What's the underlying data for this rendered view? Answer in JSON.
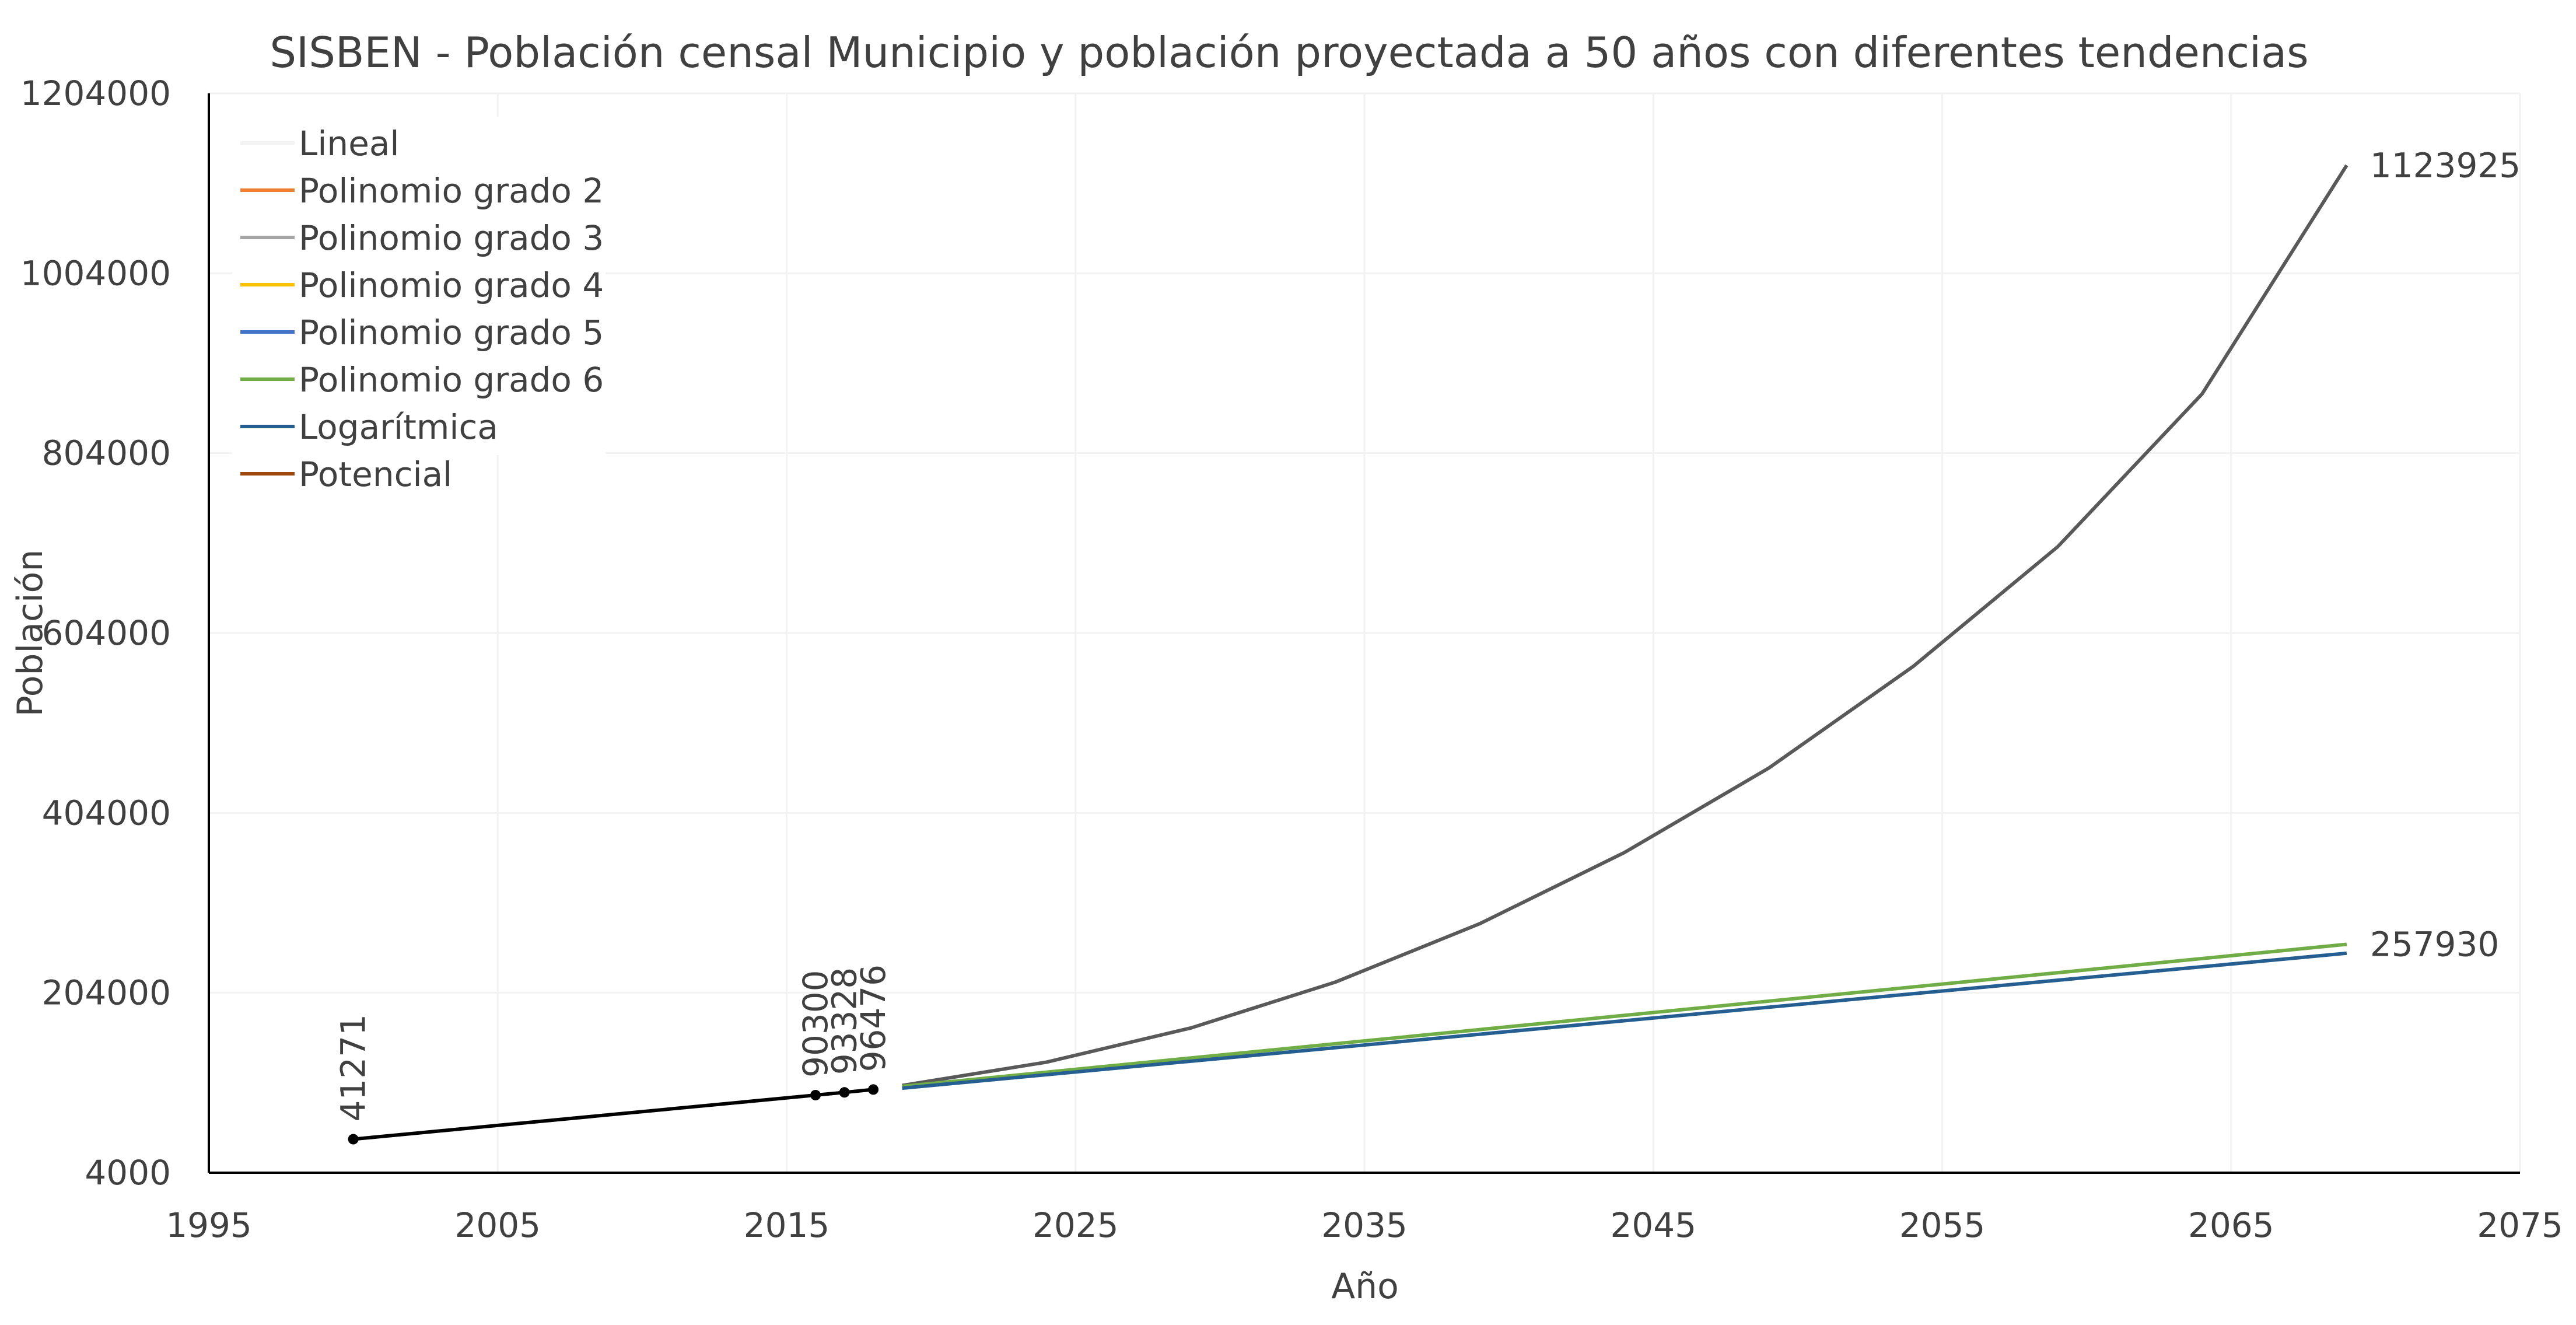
{
  "chart_data": {
    "type": "line",
    "title": "SISBEN - Población censal Municipio y población proyectada a 50 años con diferentes tendencias",
    "xlabel": "Año",
    "ylabel": "Población",
    "xlim": [
      1995,
      2075
    ],
    "ylim": [
      4000,
      1204000
    ],
    "xticks": [
      "1995",
      "2005",
      "2015",
      "2025",
      "2035",
      "2045",
      "2055",
      "2065",
      "2075"
    ],
    "yticks": [
      "4000",
      "204000",
      "404000",
      "604000",
      "804000",
      "1004000",
      "1204000"
    ],
    "grid": true,
    "legend_position": "top-left",
    "legend": [
      {
        "name": "Lineal",
        "color": "#f2f2f2"
      },
      {
        "name": "Polinomio grado 2",
        "color": "#ed7d31"
      },
      {
        "name": "Polinomio grado 3",
        "color": "#a5a5a5"
      },
      {
        "name": "Polinomio grado 4",
        "color": "#ffc000"
      },
      {
        "name": "Polinomio grado 5",
        "color": "#4472c4"
      },
      {
        "name": "Polinomio grado 6",
        "color": "#70ad47"
      },
      {
        "name": "Logarítmica",
        "color": "#255e91"
      },
      {
        "name": "Potencial",
        "color": "#9e480e"
      }
    ],
    "census": {
      "color": "#000000",
      "x": [
        2000,
        2016,
        2017,
        2018
      ],
      "y": [
        41271,
        90300,
        93328,
        96476
      ],
      "labels": [
        "41271",
        "90300",
        "93328",
        "96476"
      ]
    },
    "projections": [
      {
        "color": "#595959",
        "x": [
          2019,
          2024,
          2029,
          2034,
          2039,
          2044,
          2049,
          2054,
          2059,
          2064,
          2069
        ],
        "y": [
          101000,
          127000,
          165000,
          216000,
          281000,
          360000,
          454000,
          567000,
          700000,
          870000,
          1123925
        ],
        "end_label": "1123925"
      },
      {
        "color": "#70ad47",
        "x": [
          2019,
          2069
        ],
        "y": [
          100000,
          257930
        ],
        "end_label": "257930"
      },
      {
        "color": "#255e91",
        "x": [
          2019,
          2069
        ],
        "y": [
          98000,
          248000
        ],
        "end_label": ""
      }
    ]
  }
}
